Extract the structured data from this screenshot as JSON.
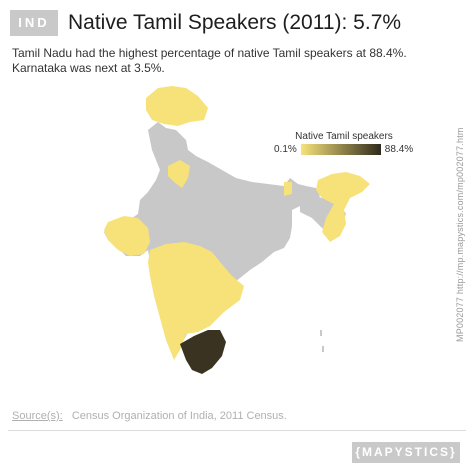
{
  "header": {
    "badge": "IND",
    "title": "Native Tamil Speakers (2011): 5.7%"
  },
  "subtitle": "Tamil Nadu had the highest percentage of native Tamil speakers at 88.4%. Karnataka was next at 3.5%.",
  "legend": {
    "title": "Native Tamil speakers",
    "min_label": "0.1%",
    "max_label": "88.4%",
    "min_color": "#f7e27a",
    "max_color": "#2e2a1d"
  },
  "side_url": "MP002077 http://mp.mapystics.com/mp002077.htm",
  "sources": {
    "label": "Source(s):",
    "text": "Census Organization of India, 2011 Census."
  },
  "brand": "{MAPYSTICS}",
  "colors": {
    "no_data": "#c8c8c8",
    "low": "#f7e27a",
    "high": "#3a3322"
  }
}
